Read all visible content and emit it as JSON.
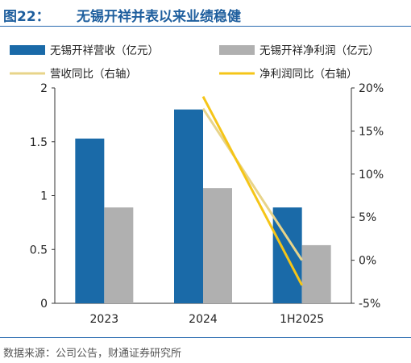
{
  "figure": {
    "number": "图22：",
    "title": "无锡开祥并表以来业绩稳健",
    "source": "数据来源：公司公告，财通证券研究所"
  },
  "chart_data": {
    "type": "bar",
    "categories": [
      "2023",
      "2024",
      "1H2025"
    ],
    "series": [
      {
        "name": "无锡开祥营收（亿元）",
        "type": "bar",
        "axis": "left",
        "color": "#1a6aa8",
        "values": [
          1.53,
          1.8,
          0.89
        ]
      },
      {
        "name": "无锡开祥净利润（亿元）",
        "type": "bar",
        "axis": "left",
        "color": "#b0b0b0",
        "values": [
          0.89,
          1.07,
          0.54
        ]
      },
      {
        "name": "营收同比（右轴）",
        "type": "line",
        "axis": "right",
        "color": "#e8d48a",
        "values": [
          null,
          17.6,
          0.0
        ]
      },
      {
        "name": "净利润同比（右轴）",
        "type": "line",
        "axis": "right",
        "color": "#f5c518",
        "values": [
          null,
          19.0,
          -2.9
        ]
      }
    ],
    "ylim": [
      0,
      2
    ],
    "yticks": [
      "0",
      "0.5",
      "1",
      "1.5",
      "2"
    ],
    "y2lim": [
      -5,
      20
    ],
    "y2ticks": [
      "-5%",
      "0%",
      "5%",
      "10%",
      "15%",
      "20%"
    ],
    "legend": "top",
    "grid": false
  }
}
